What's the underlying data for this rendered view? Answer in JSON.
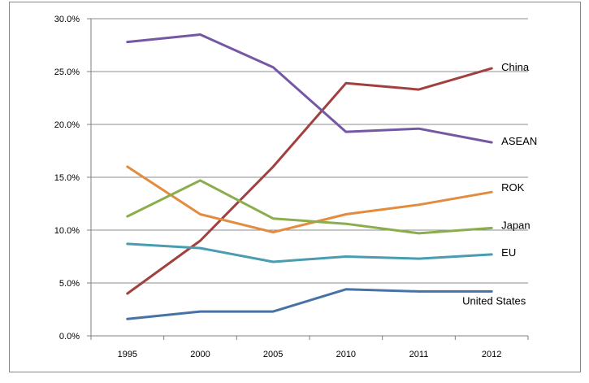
{
  "chart_data": {
    "type": "line",
    "title": "",
    "xlabel": "",
    "ylabel": "",
    "categories": [
      "1995",
      "2000",
      "2005",
      "2010",
      "2011",
      "2012"
    ],
    "y_tick_labels": [
      "0.0%",
      "5.0%",
      "10.0%",
      "15.0%",
      "20.0%",
      "25.0%",
      "30.0%"
    ],
    "ylim": [
      0,
      30
    ],
    "y_unit": "percent",
    "grid": "horizontal",
    "legend": "inline labels at series ends",
    "series": [
      {
        "name": "China",
        "color": "#A0413F",
        "values": [
          4.0,
          9.0,
          16.0,
          23.9,
          23.3,
          25.3
        ]
      },
      {
        "name": "ASEAN",
        "color": "#7558A3",
        "values": [
          27.8,
          28.5,
          25.4,
          19.3,
          19.6,
          18.3
        ]
      },
      {
        "name": "ROK",
        "color": "#E38B3E",
        "values": [
          16.0,
          11.5,
          9.8,
          11.5,
          12.4,
          13.6
        ]
      },
      {
        "name": "Japan",
        "color": "#8AAE4E",
        "values": [
          11.3,
          14.7,
          11.1,
          10.6,
          9.7,
          10.2
        ]
      },
      {
        "name": "EU",
        "color": "#4A9DB0",
        "values": [
          8.7,
          8.3,
          7.0,
          7.5,
          7.3,
          7.7
        ]
      },
      {
        "name": "United States",
        "color": "#4672A6",
        "values": [
          1.6,
          2.3,
          2.3,
          4.4,
          4.2,
          4.2
        ]
      }
    ]
  }
}
